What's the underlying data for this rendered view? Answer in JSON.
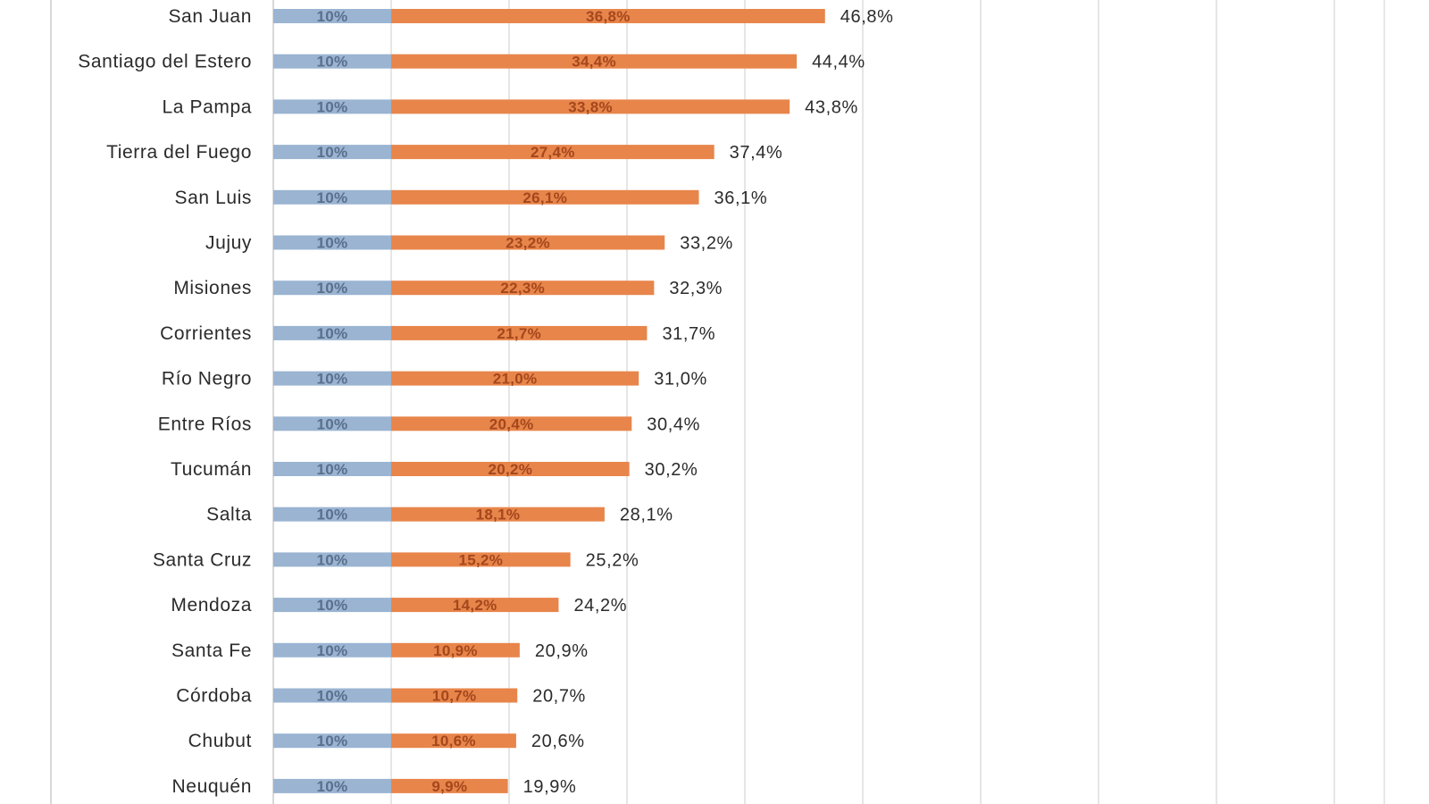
{
  "chart_data": {
    "type": "bar",
    "orientation": "horizontal",
    "stacked": true,
    "categories": [
      "San Juan",
      "Santiago del Estero",
      "La Pampa",
      "Tierra del Fuego",
      "San Luis",
      "Jujuy",
      "Misiones",
      "Corrientes",
      "Río Negro",
      "Entre Ríos",
      "Tucumán",
      "Salta",
      "Santa Cruz",
      "Mendoza",
      "Santa Fe",
      "Córdoba",
      "Chubut",
      "Neuquén"
    ],
    "series": [
      {
        "color": "#9ab4d2",
        "values": [
          10,
          10,
          10,
          10,
          10,
          10,
          10,
          10,
          10,
          10,
          10,
          10,
          10,
          10,
          10,
          10,
          10,
          10
        ],
        "labels": [
          "10%",
          "10%",
          "10%",
          "10%",
          "10%",
          "10%",
          "10%",
          "10%",
          "10%",
          "10%",
          "10%",
          "10%",
          "10%",
          "10%",
          "10%",
          "10%",
          "10%",
          "10%"
        ]
      },
      {
        "color": "#e8854a",
        "values": [
          36.8,
          34.4,
          33.8,
          27.4,
          26.1,
          23.2,
          22.3,
          21.7,
          21.0,
          20.4,
          20.2,
          18.1,
          15.2,
          14.2,
          10.9,
          10.7,
          10.6,
          9.9
        ],
        "labels": [
          "36,8%",
          "34,4%",
          "33,8%",
          "27,4%",
          "26,1%",
          "23,2%",
          "22,3%",
          "21,7%",
          "21,0%",
          "20,4%",
          "20,2%",
          "18,1%",
          "15,2%",
          "14,2%",
          "10,9%",
          "10,7%",
          "10,6%",
          "9,9%"
        ]
      }
    ],
    "totals": [
      46.8,
      44.4,
      43.8,
      37.4,
      36.1,
      33.2,
      32.3,
      31.7,
      31.0,
      30.4,
      30.2,
      28.1,
      25.2,
      24.2,
      20.9,
      20.7,
      20.6,
      19.9
    ],
    "total_labels": [
      "46,8%",
      "44,4%",
      "43,8%",
      "37,4%",
      "36,1%",
      "33,2%",
      "32,3%",
      "31,7%",
      "31,0%",
      "30,4%",
      "30,2%",
      "28,1%",
      "25,2%",
      "24,2%",
      "20,9%",
      "20,7%",
      "20,6%",
      "19,9%"
    ],
    "xlim": [
      0,
      95
    ],
    "grid": true,
    "gridline_step": 10,
    "legend": "none"
  }
}
